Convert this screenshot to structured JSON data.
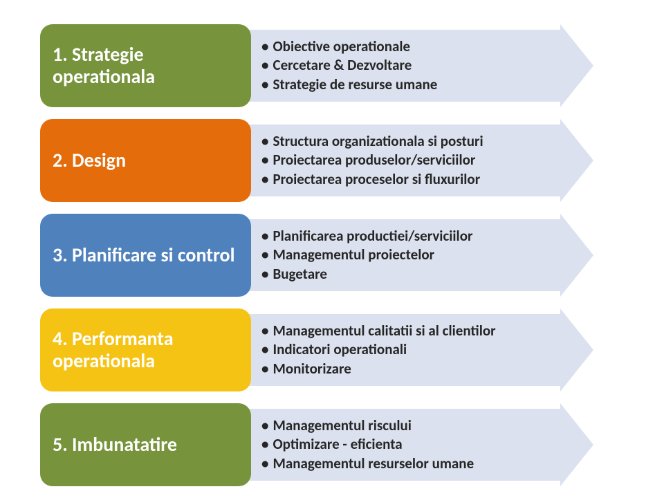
{
  "diagram": {
    "type": "arrow-list",
    "background": "#ffffff",
    "arrow_fill": "#dbe1ee",
    "arrow_head_fill": "#dbe1ee",
    "label_font_size": 28,
    "label_color": "#ffffff",
    "bullet_font_size": 21,
    "bullet_color": "#262626",
    "rows": [
      {
        "label": "1. Strategie operationala",
        "box_color": "#77933c",
        "bullets": [
          "Obiective operationale",
          "Cercetare & Dezvoltare",
          "Strategie de resurse umane"
        ]
      },
      {
        "label": "2. Design",
        "box_color": "#e46c0a",
        "bullets": [
          "Structura organizationala si posturi",
          "Proiectarea produselor/serviciilor",
          "Proiectarea proceselor si fluxurilor"
        ]
      },
      {
        "label": "3. Planificare si control",
        "box_color": "#4f81bd",
        "bullets": [
          "Planificarea productiei/serviciilor",
          "Managementul proiectelor",
          "Bugetare"
        ]
      },
      {
        "label": "4. Performanta operationala",
        "box_color": "#f5c314",
        "bullets": [
          "Managementul calitatii si al clientilor",
          "Indicatori operationali",
          "Monitorizare"
        ]
      },
      {
        "label": "5. Imbunatatire",
        "box_color": "#77933c",
        "bullets": [
          "Managementul riscului",
          "Optimizare - eficienta",
          "Managementul resurselor umane"
        ]
      }
    ]
  }
}
